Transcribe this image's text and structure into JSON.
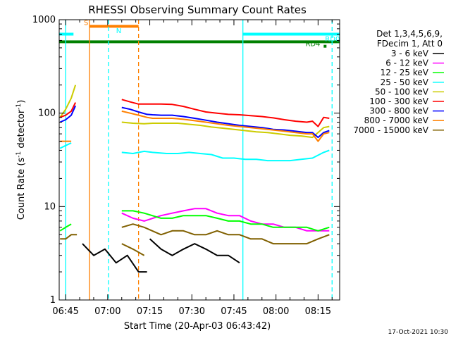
{
  "chart_data": {
    "type": "line",
    "title": "RHESSI Observing Summary Count Rates",
    "xlabel": "Start Time (20-Apr-03 06:43:42)",
    "ylabel_main": "Count Rate (s",
    "ylabel_sup1": "-1",
    "ylabel_mid": " detector",
    "ylabel_sup2": "-1",
    "ylabel_end": ")",
    "y_scale": "log",
    "ylim": [
      1,
      1000
    ],
    "xlim_minutes": [
      -2.3,
      97.7
    ],
    "x_axis_origin_time": "06:45",
    "x_tick_minutes": [
      0,
      15,
      30,
      45,
      60,
      75,
      90
    ],
    "x_tick_labels": [
      "06:45",
      "07:00",
      "07:15",
      "07:30",
      "07:45",
      "08:00",
      "08:15"
    ],
    "y_ticks": [
      1,
      10,
      100,
      1000
    ],
    "y_tick_labels": [
      "1",
      "10",
      "100",
      "1000"
    ],
    "footer_date": "17-Oct-2021 10:30",
    "legend": {
      "header1": "Det 1,3,4,5,6,9,",
      "header2": "FDecim 1, Att 0",
      "placement": "right",
      "entries": [
        {
          "label": "3 - 6 keV",
          "color": "#000000"
        },
        {
          "label": "6 - 12 keV",
          "color": "#ff00ff"
        },
        {
          "label": "12 - 25 keV",
          "color": "#00ff00"
        },
        {
          "label": "25 - 50 keV",
          "color": "#00ffff"
        },
        {
          "label": "50 - 100 keV",
          "color": "#cccc00"
        },
        {
          "label": "100 - 300 keV",
          "color": "#ff0000"
        },
        {
          "label": "300 - 800 keV",
          "color": "#0000ff"
        },
        {
          "label": "800 - 7000 keV",
          "color": "#ff8000"
        },
        {
          "label": "7000 - 15000 keV",
          "color": "#806000"
        }
      ]
    },
    "flags": [
      {
        "label": "S",
        "color": "#ff8000",
        "start_min": 8.5,
        "end_min": 26,
        "level": 850
      },
      {
        "label": "N",
        "color": "#00ffff",
        "start_min": -2.3,
        "end_min": 2.8,
        "level": 700
      },
      {
        "label": "RD0",
        "color": "#00ffff",
        "start_min": 63,
        "end_min": 97.7,
        "level": 700
      },
      {
        "label": "RD4",
        "color": "#008000",
        "start_min": 92,
        "end_min": 93,
        "level": 520
      },
      {
        "label": "",
        "color": "#008000",
        "start_min": -2.3,
        "end_min": 97.7,
        "level": 580
      }
    ],
    "flag_label_positions": {
      "S": {
        "min": 6.5,
        "level": 880
      },
      "N": {
        "min": 18,
        "level": 720
      },
      "RD0": {
        "min": 92.5,
        "level": 590
      },
      "RD4": {
        "min": 85.5,
        "level": 520
      }
    },
    "vlines": [
      {
        "min": 0,
        "color": "#00ffff",
        "style": "solid"
      },
      {
        "min": 8.5,
        "color": "#ff8000",
        "style": "solid"
      },
      {
        "min": 15.3,
        "color": "#00ffff",
        "style": "dashed"
      },
      {
        "min": 26,
        "color": "#ff8000",
        "style": "dashed"
      },
      {
        "min": 63.2,
        "color": "#00ffff",
        "style": "solid"
      },
      {
        "min": 95,
        "color": "#00ffff",
        "style": "dashed"
      }
    ],
    "series": [
      {
        "name": "3 - 6 keV",
        "color": "#000000",
        "segments": [
          {
            "x": [
              30,
              34,
              38,
              42,
              46,
              50,
              54,
              58,
              62
            ],
            "y": [
              4.5,
              3.5,
              3.0,
              3.5,
              4.0,
              3.5,
              3.0,
              3.0,
              2.5
            ]
          },
          {
            "x": [
              6,
              10,
              14,
              18,
              22,
              26,
              29
            ],
            "y": [
              4.0,
              3.0,
              3.5,
              2.5,
              3.0,
              2.0,
              2.0
            ]
          }
        ]
      },
      {
        "name": "6 - 12 keV",
        "color": "#ff00ff",
        "segments": [
          {
            "x": [
              20,
              24,
              28,
              34,
              38,
              42,
              46,
              50,
              54,
              58,
              62,
              66,
              70,
              74,
              78,
              82,
              86,
              90,
              94
            ],
            "y": [
              8.5,
              7.5,
              7.0,
              8.0,
              8.5,
              9.0,
              9.5,
              9.5,
              8.5,
              8.0,
              8.0,
              7.0,
              6.5,
              6.5,
              6.0,
              6.0,
              5.5,
              5.5,
              5.5
            ]
          }
        ]
      },
      {
        "name": "12 - 25 keV",
        "color": "#00ff00",
        "segments": [
          {
            "x": [
              20,
              24,
              28,
              34,
              38,
              42,
              46,
              50,
              54,
              58,
              62,
              66,
              70,
              74,
              78,
              82,
              86,
              90,
              94
            ],
            "y": [
              9.0,
              9.0,
              8.5,
              7.5,
              7.5,
              8.0,
              8.0,
              8.0,
              7.5,
              7.0,
              7.0,
              6.5,
              6.5,
              6.0,
              6.0,
              6.0,
              6.0,
              5.5,
              6.0
            ]
          },
          {
            "x": [
              -2,
              0,
              2
            ],
            "y": [
              5.5,
              6.0,
              6.5
            ]
          }
        ]
      },
      {
        "name": "25 - 50 keV",
        "color": "#00ffff",
        "segments": [
          {
            "x": [
              20,
              24,
              28,
              31,
              36,
              40,
              44,
              48,
              52,
              56,
              60,
              64,
              68,
              72,
              76,
              80,
              84,
              88,
              92,
              94
            ],
            "y": [
              38,
              37,
              39,
              38,
              37,
              37,
              38,
              37,
              36,
              33,
              33,
              32,
              32,
              31,
              31,
              31,
              32,
              33,
              38,
              40
            ]
          },
          {
            "x": [
              -2,
              0,
              2
            ],
            "y": [
              42,
              45,
              48
            ]
          }
        ]
      },
      {
        "name": "50 - 100 keV",
        "color": "#cccc00",
        "segments": [
          {
            "x": [
              20,
              24,
              28,
              31,
              36,
              40,
              44,
              48,
              52,
              56,
              60,
              64,
              68,
              72,
              76,
              80,
              84,
              88,
              92,
              94
            ],
            "y": [
              80,
              78,
              77,
              78,
              78,
              78,
              76,
              74,
              71,
              69,
              67,
              65,
              63,
              62,
              60,
              58,
              57,
              55,
              70,
              72
            ]
          },
          {
            "x": [
              -2,
              0,
              2,
              3.5
            ],
            "y": [
              90,
              110,
              145,
              200
            ]
          }
        ]
      },
      {
        "name": "100 - 300 keV",
        "color": "#ff0000",
        "segments": [
          {
            "x": [
              20,
              23,
              26,
              29,
              31,
              34,
              38,
              42,
              46,
              50,
              54,
              58,
              62,
              66,
              70,
              74,
              78,
              82,
              86,
              88,
              90,
              92,
              94
            ],
            "y": [
              140,
              132,
              125,
              125,
              125,
              125,
              124,
              118,
              110,
              103,
              100,
              97,
              96,
              94,
              92,
              89,
              85,
              82,
              80,
              82,
              72,
              90,
              88
            ]
          },
          {
            "x": [
              -2,
              0,
              2,
              3.5
            ],
            "y": [
              90,
              95,
              105,
              130
            ]
          }
        ]
      },
      {
        "name": "300 - 800 keV",
        "color": "#0000ff",
        "segments": [
          {
            "x": [
              20,
              23,
              26,
              29,
              31,
              34,
              38,
              42,
              46,
              50,
              54,
              58,
              62,
              66,
              70,
              74,
              78,
              82,
              86,
              88,
              90,
              92,
              94
            ],
            "y": [
              115,
              110,
              103,
              97,
              96,
              95,
              95,
              92,
              88,
              84,
              80,
              77,
              74,
              72,
              70,
              67,
              66,
              64,
              62,
              62,
              55,
              62,
              65
            ]
          },
          {
            "x": [
              -2,
              0,
              2,
              3.5
            ],
            "y": [
              80,
              85,
              95,
              120
            ]
          }
        ]
      },
      {
        "name": "800 - 7000 keV",
        "color": "#ff8000",
        "segments": [
          {
            "x": [
              20,
              23,
              26,
              29,
              31,
              34,
              38,
              42,
              46,
              50,
              54,
              58,
              62,
              66,
              70,
              74,
              78,
              82,
              86,
              88,
              90,
              92,
              94
            ],
            "y": [
              105,
              100,
              95,
              90,
              88,
              88,
              88,
              86,
              83,
              80,
              77,
              74,
              72,
              70,
              68,
              66,
              64,
              62,
              60,
              60,
              50,
              60,
              62
            ]
          },
          {
            "x": [
              -2,
              0,
              2
            ],
            "y": [
              50,
              50,
              50
            ]
          }
        ]
      },
      {
        "name": "7000 - 15000 keV",
        "color": "#806000",
        "segments": [
          {
            "x": [
              20,
              24,
              28,
              34,
              38,
              42,
              46,
              50,
              54,
              58,
              62,
              66,
              70,
              74,
              78,
              82,
              86,
              90,
              94
            ],
            "y": [
              6.0,
              6.5,
              6.0,
              5.0,
              5.5,
              5.5,
              5.0,
              5.0,
              5.5,
              5.0,
              5.0,
              4.5,
              4.5,
              4.0,
              4.0,
              4.0,
              4.0,
              4.5,
              5.0
            ]
          },
          {
            "x": [
              -2,
              0,
              2,
              4
            ],
            "y": [
              4.5,
              4.5,
              5.0,
              5.0
            ]
          },
          {
            "x": [
              20,
              24,
              28
            ],
            "y": [
              4.0,
              3.5,
              3.0
            ]
          }
        ]
      }
    ]
  }
}
